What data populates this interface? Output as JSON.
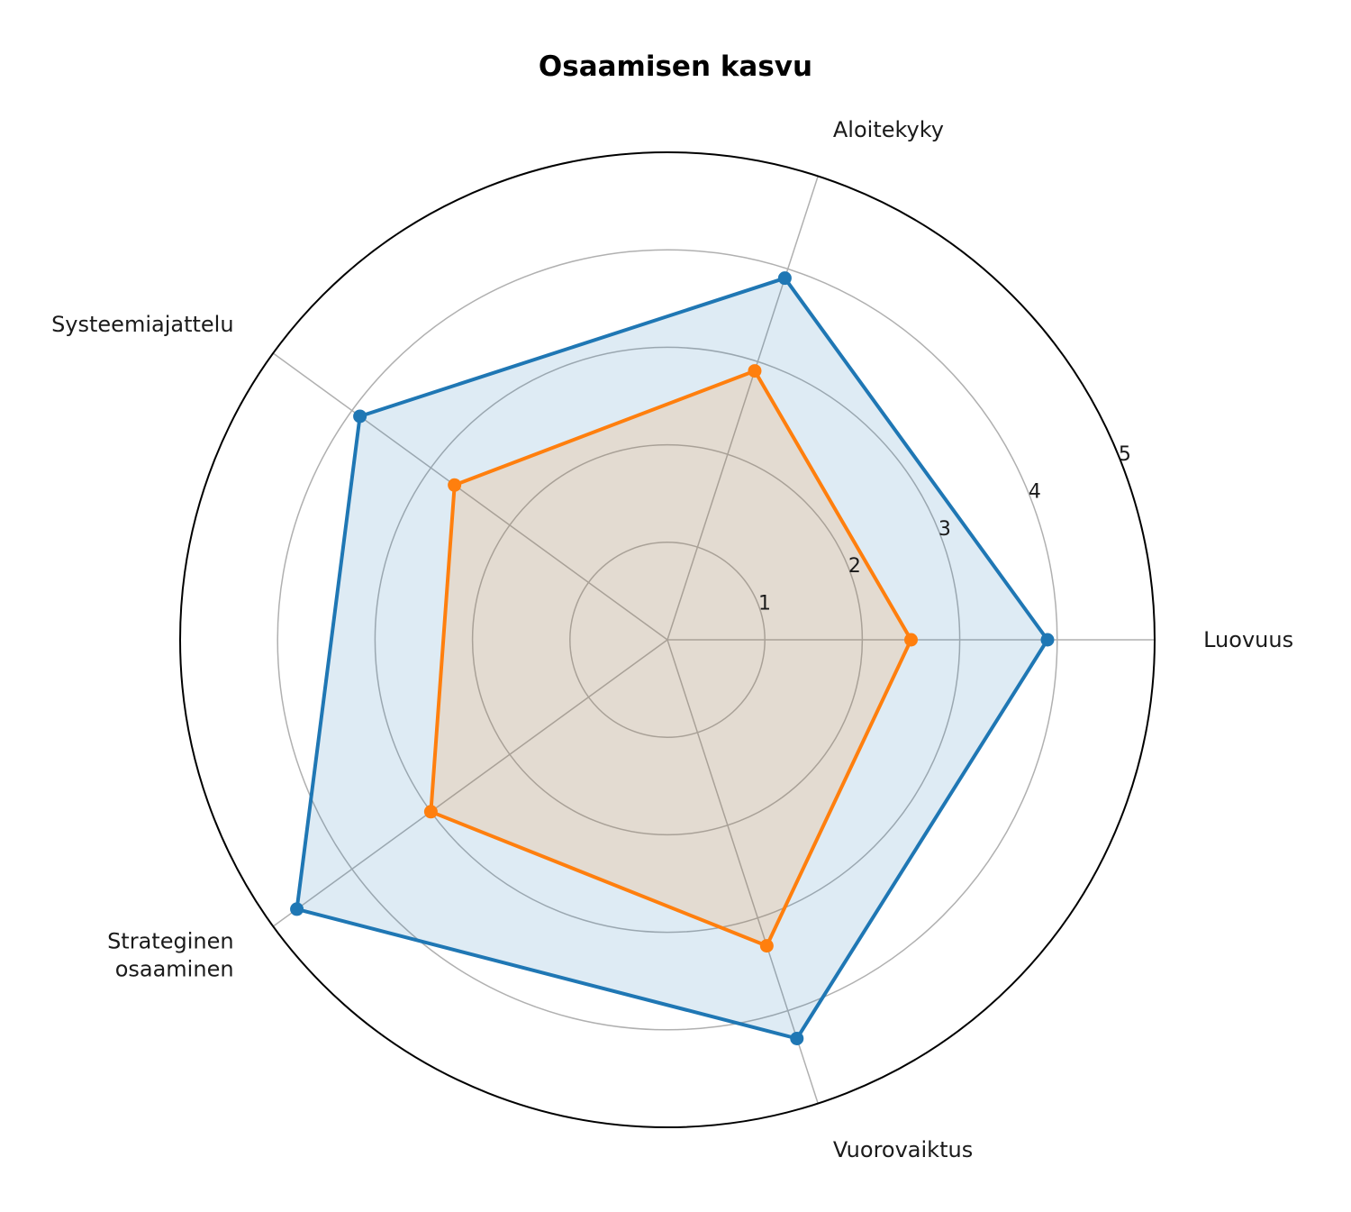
{
  "chart_data": {
    "type": "radar",
    "title": "Osaamisen kasvu",
    "categories": [
      "Luovuus",
      "Aloitekyky",
      "Systeemiajattelu",
      "Strateginen osaaminen",
      "Vuorovaiktus"
    ],
    "category_lines": [
      [
        "Luovuus"
      ],
      [
        "Aloitekyky"
      ],
      [
        "Systeemiajattelu"
      ],
      [
        "Strateginen",
        "osaaminen"
      ],
      [
        "Vuorovaiktus"
      ]
    ],
    "rlim": [
      0,
      5
    ],
    "rticks": [
      "1",
      "2",
      "3",
      "4",
      "5"
    ],
    "grid": true,
    "series": [
      {
        "values": [
          3.9,
          3.9,
          3.9,
          4.7,
          4.3
        ],
        "color": "#1f77b4",
        "fill": "#1f77b4"
      },
      {
        "values": [
          2.5,
          2.9,
          2.7,
          3.0,
          3.3
        ],
        "color": "#ff7f0e",
        "fill": "#ff7f0e"
      }
    ]
  }
}
